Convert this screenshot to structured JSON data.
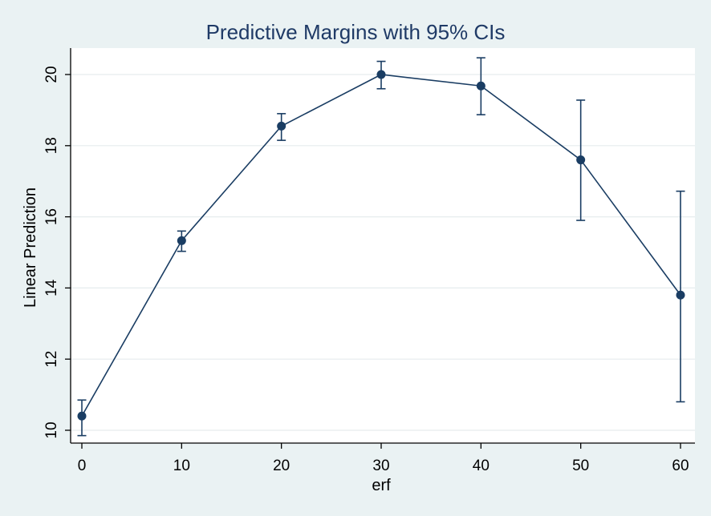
{
  "chart_data": {
    "type": "line",
    "title": "Predictive Margins with 95% CIs",
    "xlabel": "erf",
    "ylabel": "Linear Prediction",
    "xlim": [
      0,
      60
    ],
    "ylim": [
      9.8,
      20.8
    ],
    "xticks": [
      0,
      10,
      20,
      30,
      40,
      50,
      60
    ],
    "yticks": [
      10,
      12,
      14,
      16,
      18,
      20
    ],
    "grid": true,
    "series": [
      {
        "x": [
          0,
          10,
          20,
          30,
          40,
          50,
          60
        ],
        "y": [
          10.4,
          15.33,
          18.55,
          20.0,
          19.68,
          17.6,
          13.8
        ],
        "ci_lower": [
          9.85,
          15.03,
          18.15,
          19.6,
          18.87,
          15.9,
          10.8
        ],
        "ci_upper": [
          10.85,
          15.6,
          18.9,
          20.37,
          20.47,
          19.28,
          16.72
        ],
        "color": "#1a3d63"
      }
    ],
    "colors": {
      "series": "#1a3d63",
      "title": "#1f3a66",
      "background": "#eaf2f3",
      "plot_background": "#ffffff"
    }
  }
}
